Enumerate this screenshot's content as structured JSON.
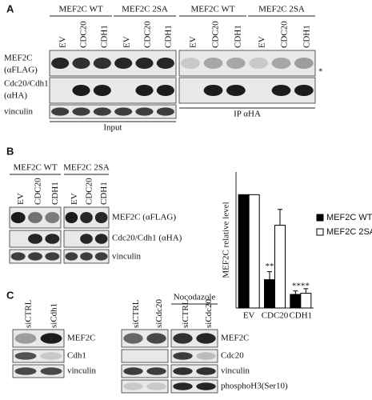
{
  "panel_a": {
    "label": "A",
    "groups": [
      {
        "title": "MEF2C WT",
        "lanes": [
          "EV",
          "CDC20",
          "CDH1"
        ]
      },
      {
        "title": "MEF2C 2SA",
        "lanes": [
          "EV",
          "CDC20",
          "CDH1"
        ]
      },
      {
        "title": "MEF2C WT",
        "lanes": [
          "EV",
          "CDC20",
          "CDH1"
        ]
      },
      {
        "title": "MEF2C 2SA",
        "lanes": [
          "EV",
          "CDC20",
          "CDH1"
        ]
      }
    ],
    "rows": [
      "MEF2C",
      "(αFLAG)",
      "Cdc20/Cdh1",
      "(αHA)",
      "vinculin"
    ],
    "input_label": "Input",
    "ip_label": "IP αHA",
    "asterisk": "*"
  },
  "panel_b": {
    "label": "B",
    "groups": [
      {
        "title": "MEF2C WT",
        "lanes": [
          "EV",
          "CDC20",
          "CDH1"
        ]
      },
      {
        "title": "MEF2C 2SA",
        "lanes": [
          "EV",
          "CDC20",
          "CDH1"
        ]
      }
    ],
    "rows": [
      "MEF2C (αFLAG)",
      "Cdc20/Cdh1 (αHA)",
      "vinculin"
    ]
  },
  "chart_data": {
    "type": "bar",
    "y_label": "MEF2C relative level",
    "categories": [
      "EV",
      "CDC20",
      "CDH1"
    ],
    "series": [
      {
        "name": "MEF2C WT",
        "color": "#000000",
        "values": [
          1,
          0.25,
          0.12
        ],
        "errors": [
          0,
          0.07,
          0.03
        ]
      },
      {
        "name": "MEF2C 2SA",
        "color": "#ffffff",
        "values": [
          1,
          0.73,
          0.13
        ],
        "errors": [
          0,
          0.14,
          0.04
        ]
      }
    ],
    "annotations": [
      "**",
      "****"
    ],
    "ylim": [
      0,
      1.2
    ],
    "legend": "right"
  },
  "panel_c": {
    "label": "C",
    "treatment": "Nocodazole",
    "groups": [
      {
        "lanes": [
          "siCTRL",
          "siCdh1"
        ],
        "rows": [
          "MEF2C",
          "Cdh1",
          "vinculin"
        ]
      },
      {
        "lanes": [
          "siCTRL",
          "siCdc20"
        ]
      },
      {
        "lanes": [
          "siCTRL",
          "siCdc20"
        ],
        "rows": [
          "MEF2C",
          "Cdc20",
          "vinculin",
          "phosphoH3(Ser10)"
        ]
      }
    ]
  }
}
